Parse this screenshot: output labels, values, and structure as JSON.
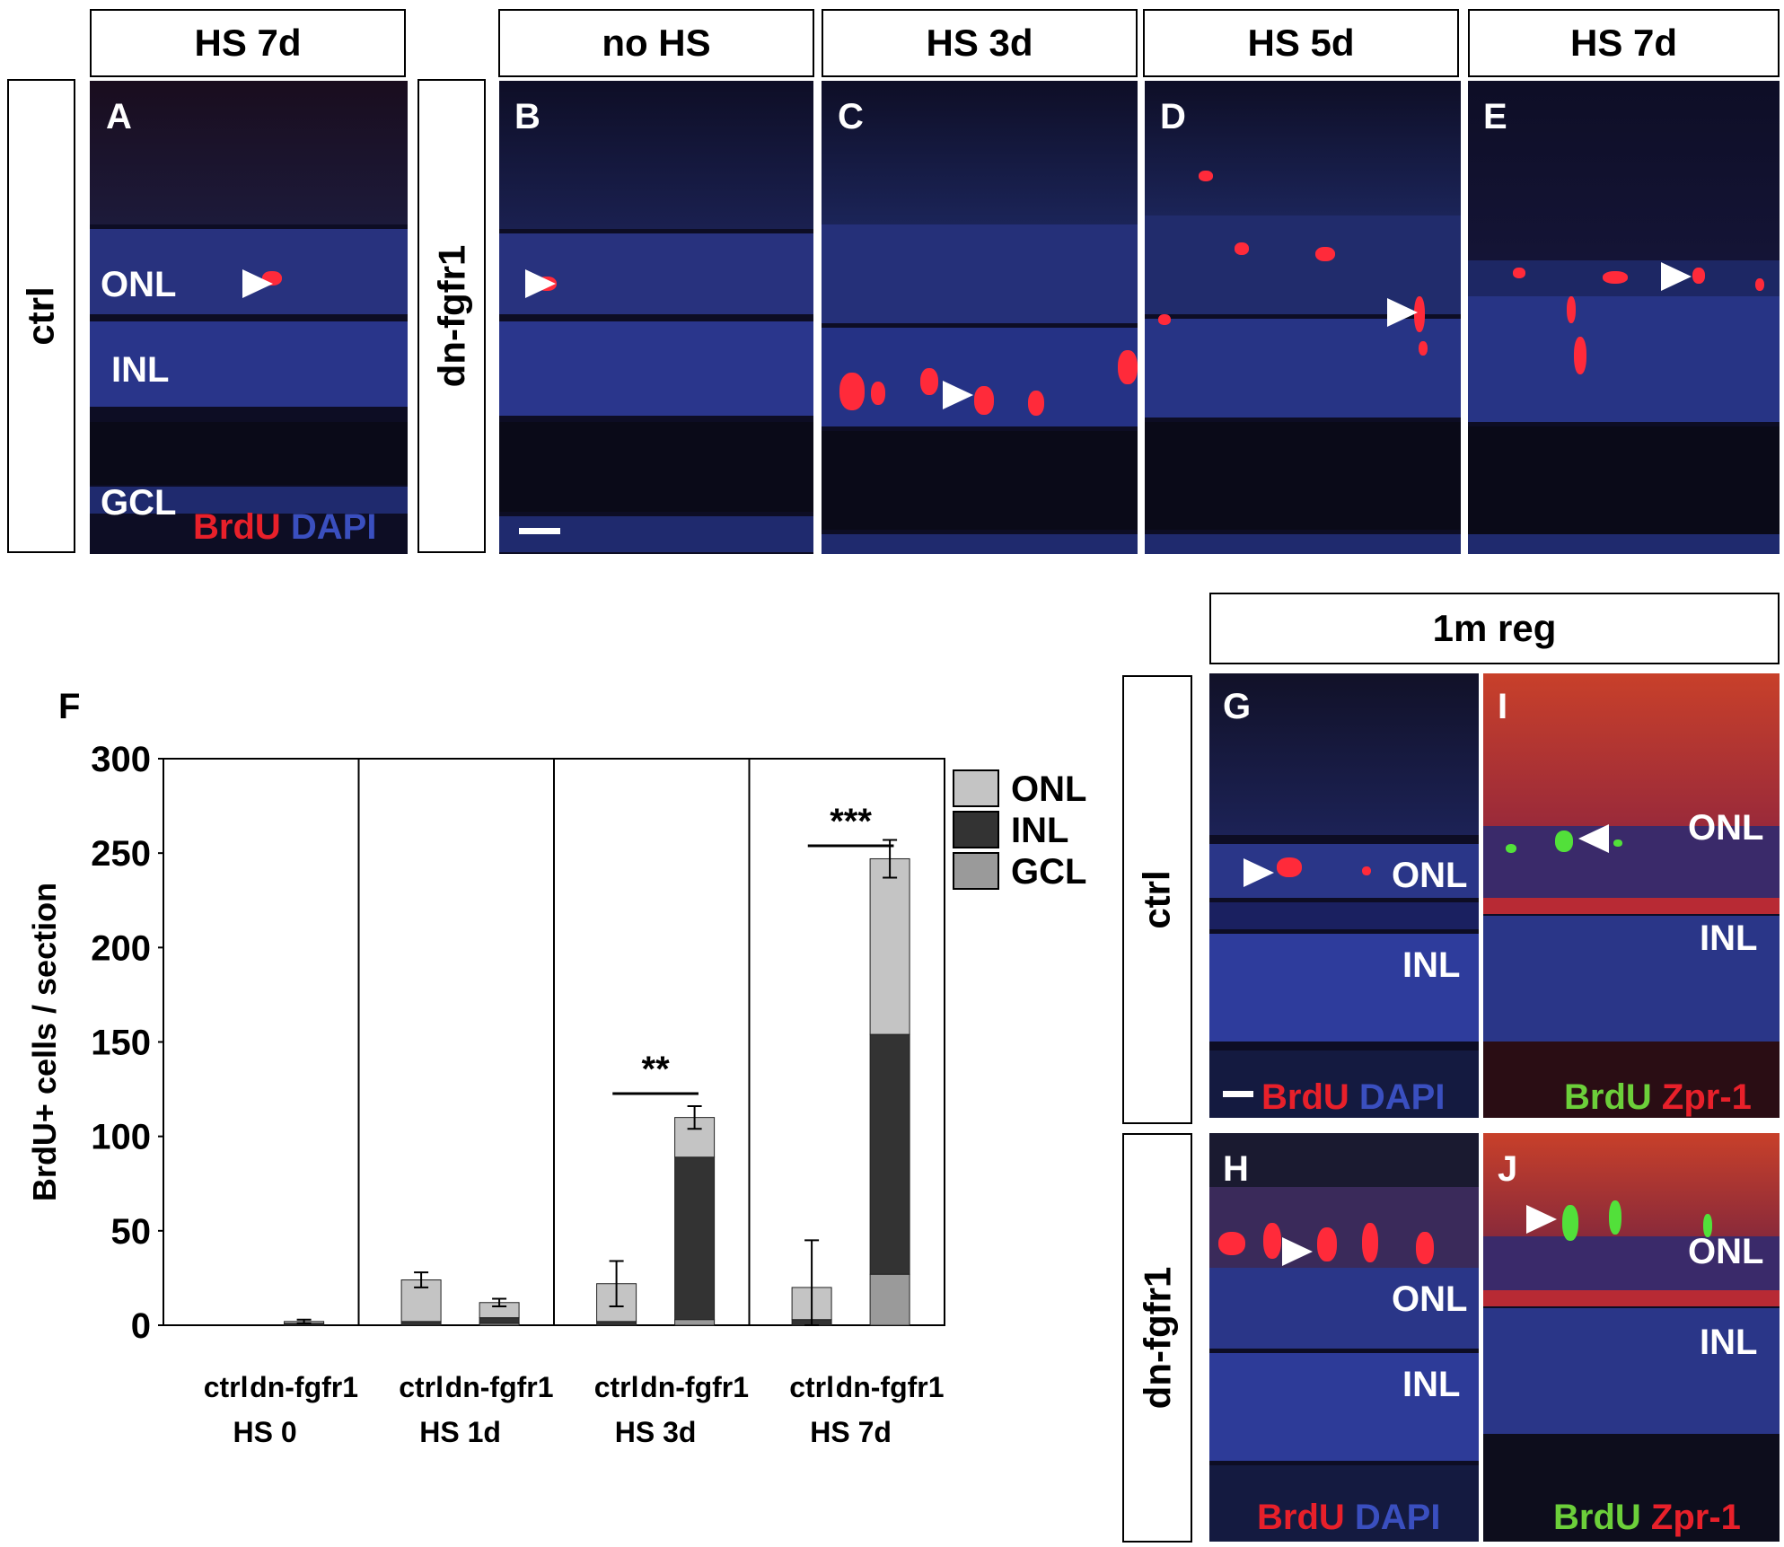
{
  "top_headers": {
    "a": "HS 7d",
    "b": "no HS",
    "c": "HS 3d",
    "d": "HS 5d",
    "e": "HS 7d"
  },
  "row_labels": {
    "ctrl_top": "ctrl",
    "dn_top": "dn-fgfr1",
    "ctrl_bottom": "ctrl",
    "dn_bottom": "dn-fgfr1"
  },
  "panel_letters": {
    "a": "A",
    "b": "B",
    "c": "C",
    "d": "D",
    "e": "E",
    "f": "F",
    "g": "G",
    "h": "H",
    "i": "I",
    "j": "J"
  },
  "layer_labels": {
    "onl": "ONL",
    "inl": "INL",
    "gcl": "GCL"
  },
  "stains": {
    "brdu": "BrdU",
    "dapi": "DAPI",
    "zpr": "Zpr-1"
  },
  "regen_header": "1m reg",
  "colors": {
    "brdu_red": "#e8202a",
    "dapi_blue": "#3a4fbf",
    "brdu_green": "#6ccf3a",
    "onl_fill": "#c4c4c4",
    "inl_fill": "#333333",
    "gcl_fill": "#9a9a9a"
  },
  "chart_data": {
    "type": "bar",
    "stacked": true,
    "ylabel": "BrdU+ cells / section",
    "ylim": [
      0,
      300
    ],
    "yticks": [
      0,
      50,
      100,
      150,
      200,
      250,
      300
    ],
    "groups": [
      {
        "label": "HS 0",
        "categories": [
          "ctrl",
          "dn-fgfr1"
        ]
      },
      {
        "label": "HS 1d",
        "categories": [
          "ctrl",
          "dn-fgfr1"
        ]
      },
      {
        "label": "HS 3d",
        "categories": [
          "ctrl",
          "dn-fgfr1"
        ]
      },
      {
        "label": "HS 7d",
        "categories": [
          "ctrl",
          "dn-fgfr1"
        ]
      }
    ],
    "legend": [
      "ONL",
      "INL",
      "GCL"
    ],
    "legend_position": "top-right",
    "series": [
      {
        "name": "GCL",
        "values": [
          0,
          0.5,
          0,
          1,
          0,
          3,
          0,
          27
        ]
      },
      {
        "name": "INL",
        "values": [
          0,
          0.5,
          2,
          3,
          2,
          86,
          3,
          127
        ]
      },
      {
        "name": "ONL",
        "values": [
          0,
          1,
          22,
          8,
          20,
          21,
          17,
          93
        ]
      }
    ],
    "errors": [
      0,
      1,
      4,
      2,
      12,
      6,
      25,
      10
    ],
    "significance": [
      {
        "group": "HS 3d",
        "label": "**"
      },
      {
        "group": "HS 7d",
        "label": "***"
      }
    ]
  }
}
